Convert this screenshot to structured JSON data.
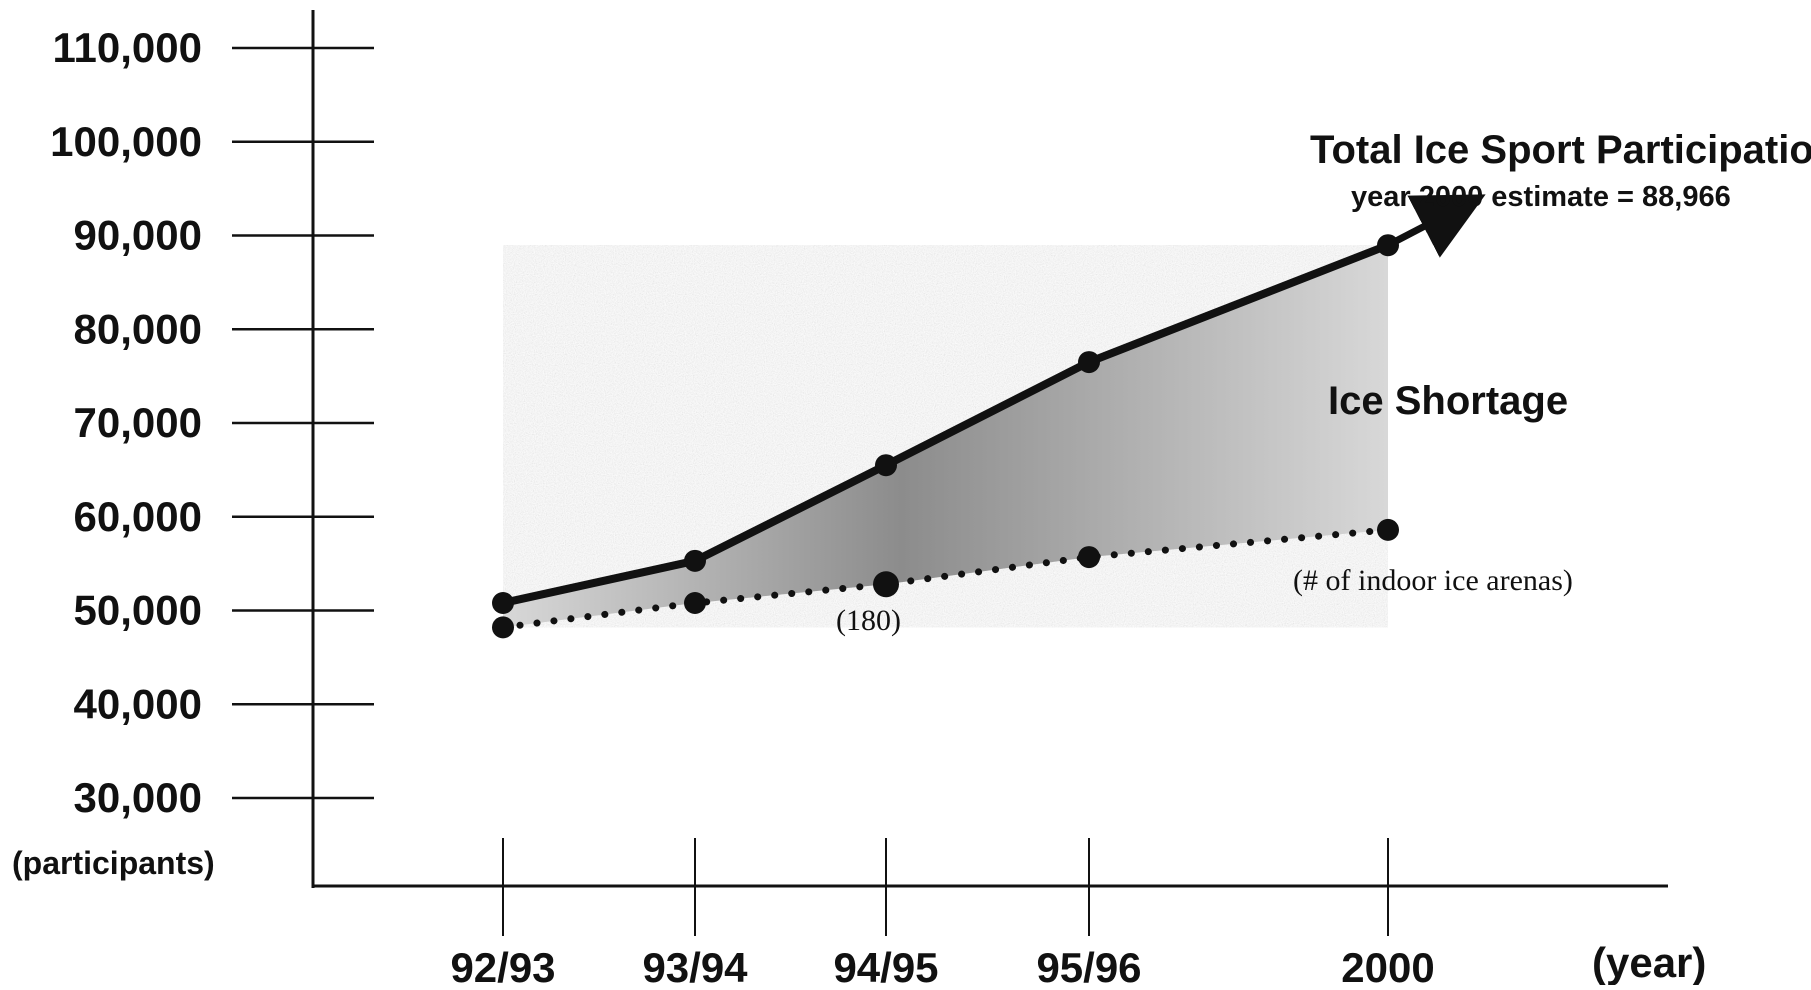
{
  "chart_data": {
    "type": "line",
    "title": "",
    "xlabel": "(year)",
    "ylabel": "(participants)",
    "categories": [
      "92/93",
      "93/94",
      "94/95",
      "95/96",
      "2000"
    ],
    "yticks": [
      "110,000",
      "100,000",
      "90,000",
      "80,000",
      "70,000",
      "60,000",
      "50,000",
      "40,000",
      "30,000"
    ],
    "ytick_values": [
      110000,
      100000,
      90000,
      80000,
      70000,
      60000,
      50000,
      40000,
      30000
    ],
    "ylim": [
      30000,
      110000
    ],
    "grid": false,
    "series": [
      {
        "name": "Total Ice Sport Participation",
        "subtitle": "year 2000 estimate = 88,966",
        "style": "solid",
        "values": [
          50800,
          55300,
          65500,
          76500,
          88966
        ]
      },
      {
        "name": "(# of indoor ice arenas)",
        "style": "dotted",
        "values": [
          48200,
          50800,
          52800,
          55700,
          58600
        ]
      }
    ],
    "annotations": {
      "region_label": "Ice Shortage",
      "point_label": "(180)"
    }
  },
  "colors": {
    "ink": "#111111",
    "shade_dark": "#8c8c8c",
    "shade_light": "#d8d8d8"
  }
}
